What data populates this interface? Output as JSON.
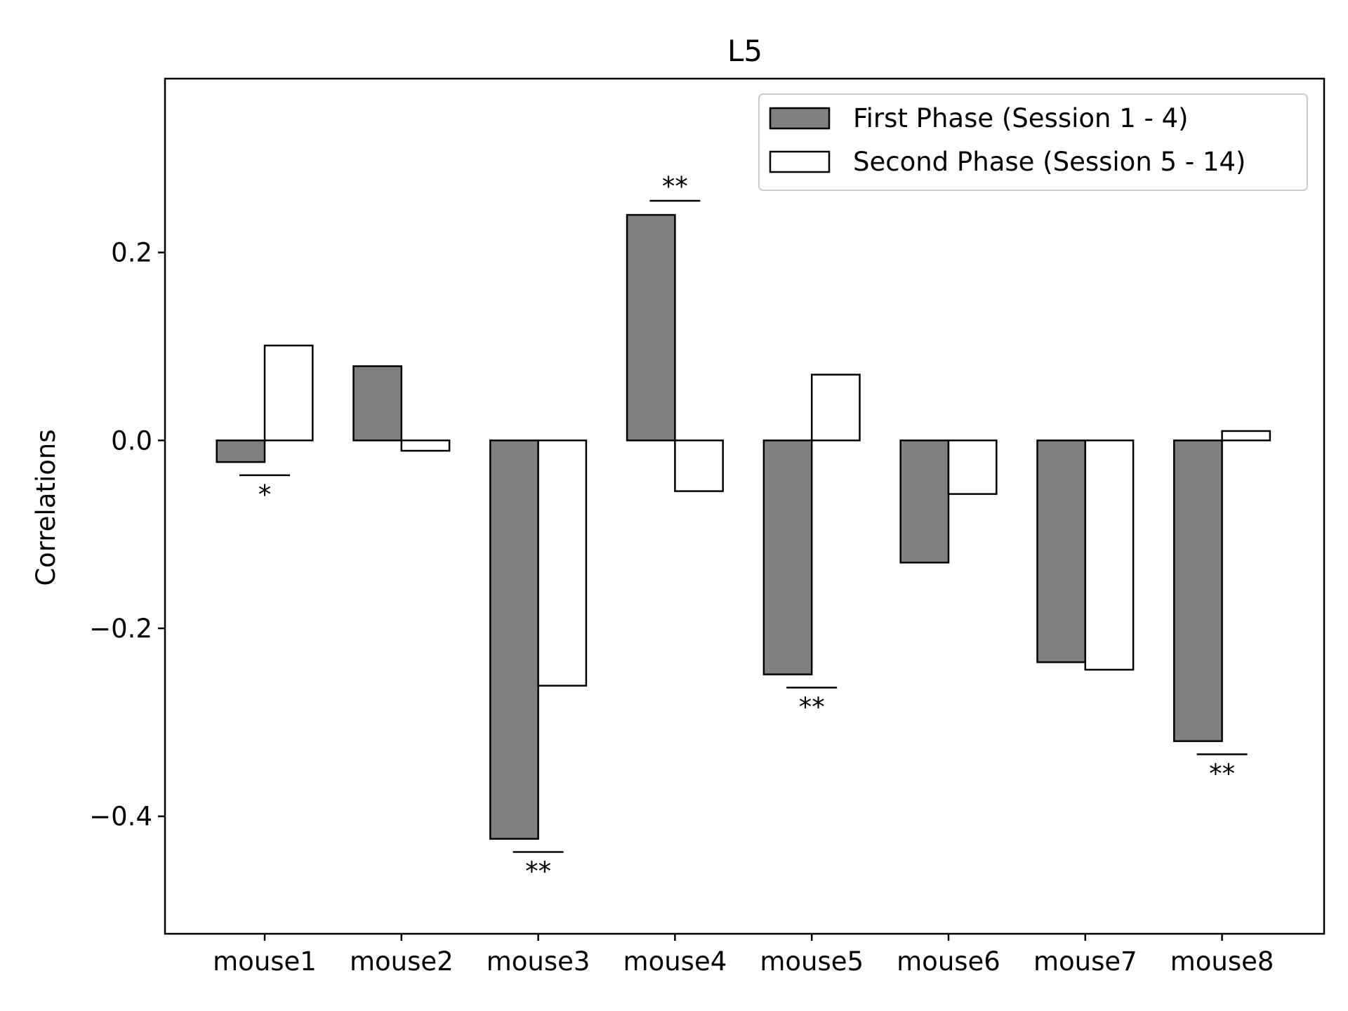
{
  "chart_data": {
    "type": "bar",
    "title": "L5",
    "xlabel": "",
    "ylabel": "Correlations",
    "categories": [
      "mouse1",
      "mouse2",
      "mouse3",
      "mouse4",
      "mouse5",
      "mouse6",
      "mouse7",
      "mouse8"
    ],
    "series": [
      {
        "name": "First Phase (Session 1 - 4)",
        "color": "#808080",
        "values": [
          -0.023,
          0.079,
          -0.424,
          0.24,
          -0.249,
          -0.13,
          -0.236,
          -0.32
        ]
      },
      {
        "name": "Second Phase (Session 5 - 14)",
        "color": "#ffffff",
        "values": [
          0.101,
          -0.011,
          -0.261,
          -0.054,
          0.07,
          -0.057,
          -0.244,
          0.01
        ]
      }
    ],
    "significance": [
      {
        "category": "mouse1",
        "label": "*",
        "value": -0.037,
        "position": "below"
      },
      {
        "category": "mouse3",
        "label": "**",
        "value": -0.438,
        "position": "below"
      },
      {
        "category": "mouse4",
        "label": "**",
        "value": 0.255,
        "position": "above"
      },
      {
        "category": "mouse5",
        "label": "**",
        "value": -0.263,
        "position": "below"
      },
      {
        "category": "mouse8",
        "label": "**",
        "value": -0.334,
        "position": "below"
      }
    ],
    "ylim": [
      -0.525,
      0.385
    ],
    "yticks": [
      0.2,
      0.0,
      -0.2,
      -0.4
    ],
    "ytick_labels": [
      "0.2",
      "0.0",
      "−0.2",
      "−0.4"
    ],
    "grid": false,
    "legend_position": "top-right"
  }
}
